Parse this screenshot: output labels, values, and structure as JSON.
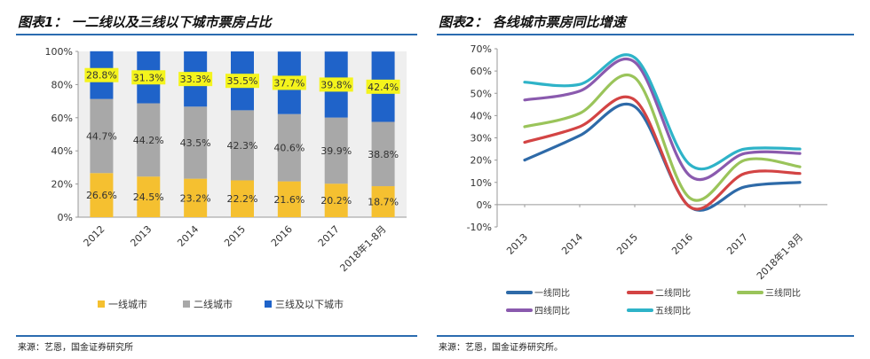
{
  "chart_data": [
    {
      "type": "bar",
      "stacked": true,
      "title": "图表1： 一二线以及三线以下城市票房占比",
      "source": "来源：艺恩，国金证券研究所",
      "categories": [
        "2012",
        "2013",
        "2014",
        "2015",
        "2016",
        "2017",
        "2018年1-8月"
      ],
      "ylim": [
        0,
        100
      ],
      "yticks": [
        "0%",
        "20%",
        "40%",
        "60%",
        "80%",
        "100%"
      ],
      "series": [
        {
          "name": "一线城市",
          "color": "#f5c030",
          "values": [
            26.6,
            24.5,
            23.2,
            22.2,
            21.6,
            20.2,
            18.7
          ],
          "labels": [
            "26.6%",
            "24.5%",
            "23.2%",
            "22.2%",
            "21.6%",
            "20.2%",
            "18.7%"
          ]
        },
        {
          "name": "二线城市",
          "color": "#a8a8a8",
          "values": [
            44.7,
            44.2,
            43.5,
            42.3,
            40.6,
            39.9,
            38.8
          ],
          "labels": [
            "44.7%",
            "44.2%",
            "43.5%",
            "42.3%",
            "40.6%",
            "39.9%",
            "38.8%"
          ]
        },
        {
          "name": "三线及以下城市",
          "color": "#1f63c9",
          "values": [
            28.8,
            31.3,
            33.3,
            35.5,
            37.7,
            39.8,
            42.4
          ],
          "labels": [
            "28.8%",
            "31.3%",
            "33.3%",
            "35.5%",
            "37.7%",
            "39.8%",
            "42.4%"
          ]
        }
      ],
      "legend": "bottom"
    },
    {
      "type": "line",
      "title": "图表2： 各线城市票房同比增速",
      "source": "来源：艺恩，国金证券研究所。",
      "categories": [
        "2013",
        "2014",
        "2015",
        "2016",
        "2017",
        "2018年1-8月"
      ],
      "ylim": [
        -10,
        70
      ],
      "yticks": [
        "-10%",
        "0%",
        "10%",
        "20%",
        "30%",
        "40%",
        "50%",
        "60%",
        "70%"
      ],
      "series": [
        {
          "name": "一线同比",
          "color": "#2e6aa8",
          "values": [
            20,
            31,
            44,
            -1,
            8,
            10
          ]
        },
        {
          "name": "二线同比",
          "color": "#d34444",
          "values": [
            28,
            35,
            47,
            -1,
            14,
            14
          ]
        },
        {
          "name": "三线同比",
          "color": "#9ac45a",
          "values": [
            35,
            41,
            57,
            3,
            20,
            17
          ]
        },
        {
          "name": "四线同比",
          "color": "#8a5aae",
          "values": [
            47,
            51,
            64,
            13,
            23,
            23
          ]
        },
        {
          "name": "五线同比",
          "color": "#2eb3c8",
          "values": [
            55,
            54,
            66,
            18,
            25,
            25
          ]
        }
      ],
      "legend": "bottom"
    }
  ]
}
